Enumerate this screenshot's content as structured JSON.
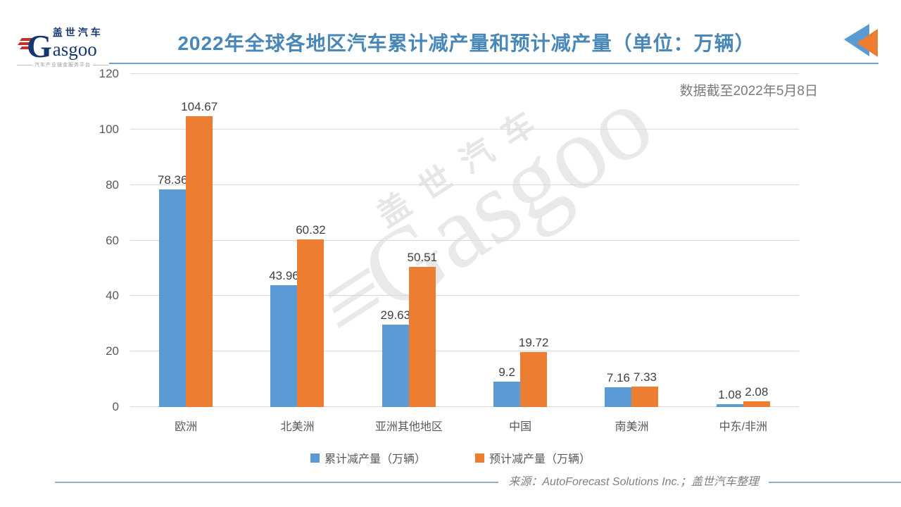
{
  "logo": {
    "chinese": "盖世汽车",
    "english": "asgoo",
    "initial": "G",
    "tagline": "汽车产业链金服务平台"
  },
  "header": {
    "title": "2022年全球各地区汽车累计减产量和预计减产量（单位：万辆）",
    "note": "数据截至2022年5月8日"
  },
  "watermark": {
    "chinese": "盖世汽车",
    "english": "Gasgoo"
  },
  "footer": {
    "source": "来源：AutoForecast Solutions Inc.；盖世汽车整理"
  },
  "colors": {
    "title_blue": "#4887B7",
    "underline_blue": "#6FA3CC",
    "series1_blue": "#5B9BD5",
    "series2_orange": "#ED7D31",
    "gridline_gray": "#D9D9D9",
    "label_gray": "#595959",
    "value_gray": "#404040",
    "logo_navy": "#17366E",
    "logo_red": "#C0332B"
  },
  "chart_data": {
    "type": "bar",
    "title": "2022年全球各地区汽车累计减产量和预计减产量（单位：万辆）",
    "xlabel": "",
    "ylabel": "",
    "categories": [
      "欧洲",
      "北美洲",
      "亚洲其他地区",
      "中国",
      "南美洲",
      "中东/非洲"
    ],
    "series": [
      {
        "name": "累计减产量（万辆）",
        "color": "#5B9BD5",
        "values": [
          78.36,
          43.96,
          29.63,
          9.2,
          7.16,
          1.08
        ],
        "labels": [
          "78.36",
          "43.96",
          "29.63",
          "9.2",
          "7.16",
          "1.08"
        ]
      },
      {
        "name": "预计减产量（万辆）",
        "color": "#ED7D31",
        "values": [
          104.67,
          60.32,
          50.51,
          19.72,
          7.33,
          2.08
        ],
        "labels": [
          "104.67",
          "60.32",
          "50.51",
          "19.72",
          "7.33",
          "2.08"
        ]
      }
    ],
    "ylim": [
      0,
      120
    ],
    "yticks": [
      0,
      20,
      40,
      60,
      80,
      100,
      120
    ],
    "grid": true,
    "legend_position": "bottom"
  }
}
